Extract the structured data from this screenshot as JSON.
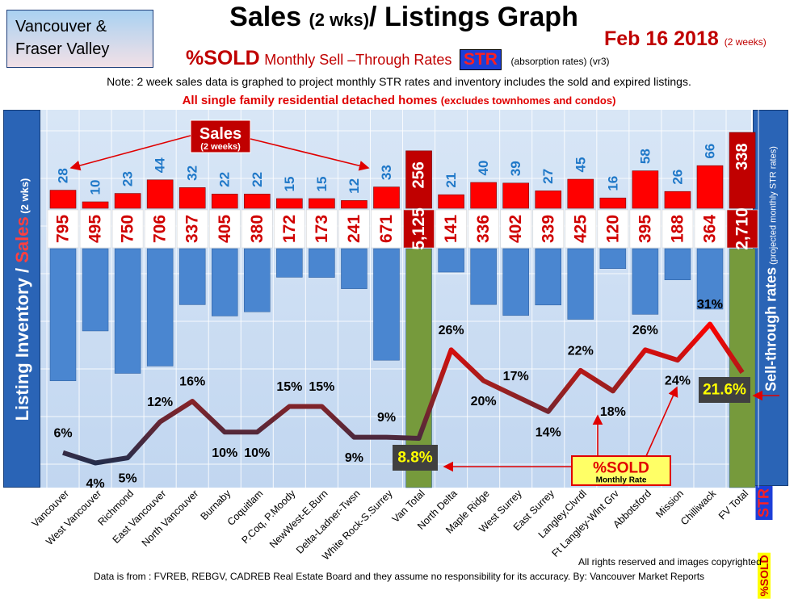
{
  "header": {
    "region_line1": "Vancouver &",
    "region_line2": "Fraser Valley",
    "title_a": "Sales ",
    "title_b": "(2 wks)",
    "title_c": "/ Listings Graph",
    "date": "Feb 16 2018",
    "date_note": "(2 weeks)",
    "subtitle_pct": "%SOLD",
    "subtitle_words": "Monthly Sell –Through Rates",
    "subtitle_str": "STR",
    "subtitle_abs": "(absorption rates) (vr3)",
    "note": "Note: 2 week sales data is graphed to project monthly STR rates and inventory includes the sold and expired listings.",
    "scope_main": "All single family residential detached homes",
    "scope_small": "(excludes townhomes and condos)"
  },
  "side": {
    "left_a": "Listing Inventory / ",
    "left_b": "Sales",
    "left_c": " (2 wks)",
    "right_a": "Sell-through rates",
    "right_b": " (projected monthly STR rates)",
    "right_str": "STR",
    "right_sold": "%SOLD"
  },
  "callouts": {
    "sales_title": "Sales",
    "sales_sub": "(2 weeks)",
    "sold_title": "%SOLD",
    "sold_sub": "Monthly Rate"
  },
  "footer": {
    "rights": "All rights reserved and  images copyrighted",
    "source": "Data is from : FVREB, REBGV, CADREB Real Estate Board and they assume no responsibility for its accuracy. By: Vancouver Market Reports"
  },
  "colors": {
    "sales_bar": "#ff0000",
    "total_sales_bar": "#c00000",
    "inventory_bar": "#4a86d0",
    "total_inventory_bar": "#769a3c",
    "sales_label": "#1f78c8",
    "str_line_low": "#1c2e4e",
    "str_line_high": "#ff0000",
    "total_badge": "#404040",
    "total_badge_text": "#ffff00"
  },
  "chart_data": {
    "type": "bar",
    "categories": [
      "Vancouver",
      "West Vancouver",
      "Richmond",
      "East Vancouver",
      "North Vancouver",
      "Burnaby",
      "Coquitlam",
      "P.Coq, P.Moody",
      "NewWest-E.Burn",
      "Delta-Ladner-Twsn",
      "White Rock-S.Surrey",
      "Van Total",
      "North Delta",
      "Maple Ridge",
      "West Surrey",
      "East Surrey",
      "Langley,Clvrdl",
      "Ft Langley-Wlnt Grv",
      "Abbotsford",
      "Mission",
      "Chilliwack",
      "FV Total"
    ],
    "totals": [
      "Van Total",
      "FV Total"
    ],
    "series": [
      {
        "name": "Sales",
        "values": [
          28,
          10,
          23,
          44,
          32,
          22,
          22,
          15,
          15,
          12,
          33,
          256,
          21,
          40,
          39,
          27,
          45,
          16,
          58,
          26,
          66,
          338
        ]
      },
      {
        "name": "Listing Inventory",
        "values": [
          795,
          495,
          750,
          706,
          337,
          405,
          380,
          172,
          173,
          241,
          671,
          5125,
          141,
          336,
          402,
          339,
          425,
          120,
          395,
          188,
          364,
          2710
        ]
      },
      {
        "name": "%SOLD Monthly Rate",
        "values": [
          6,
          4,
          5,
          12,
          16,
          10,
          10,
          15,
          15,
          9,
          9,
          8.8,
          26,
          20,
          17,
          14,
          22,
          18,
          26,
          24,
          31,
          21.6
        ]
      }
    ],
    "sales_labels": [
      "28",
      "10",
      "23",
      "44",
      "32",
      "22",
      "22",
      "15",
      "15",
      "12",
      "33",
      "256",
      "21",
      "40",
      "39",
      "27",
      "45",
      "16",
      "58",
      "26",
      "66",
      "338"
    ],
    "inventory_labels": [
      "795",
      "495",
      "750",
      "706",
      "337",
      "405",
      "380",
      "172",
      "173",
      "241",
      "671",
      "5,125",
      "141",
      "336",
      "402",
      "339",
      "425",
      "120",
      "395",
      "188",
      "364",
      "2,710"
    ],
    "pct_labels": [
      "6%",
      "4%",
      "5%",
      "12%",
      "16%",
      "10%",
      "10%",
      "15%",
      "15%",
      "9%",
      "9%",
      "8.8%",
      "26%",
      "20%",
      "17%",
      "14%",
      "22%",
      "18%",
      "26%",
      "24%",
      "31%",
      "21.6%"
    ],
    "grid": true
  }
}
